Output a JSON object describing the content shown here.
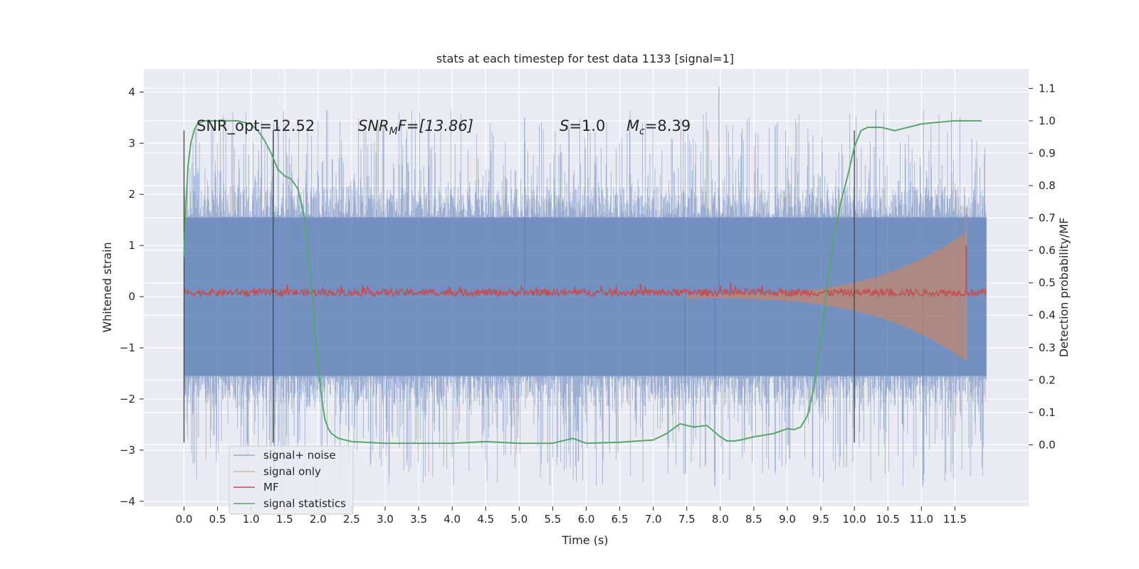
{
  "chart_data": {
    "type": "line",
    "title": "stats at each timestep for test data 1133 [signal=1]",
    "xlabel": "Time (s)",
    "ylabel": "Whitened strain",
    "y2label": "Detection probability/MF",
    "xlim": [
      -0.6,
      12.6
    ],
    "ylim": [
      -4.1,
      4.45
    ],
    "y2lim": [
      -0.19,
      1.16
    ],
    "xticks": [
      "0.0",
      "0.5",
      "1.0",
      "1.5",
      "2.0",
      "2.5",
      "3.0",
      "3.5",
      "4.0",
      "4.5",
      "5.0",
      "5.5",
      "6.0",
      "6.5",
      "7.0",
      "7.5",
      "8.0",
      "8.5",
      "9.0",
      "9.5",
      "10.0",
      "10.5",
      "11.0",
      "11.5"
    ],
    "yticks": [
      "4",
      "3",
      "2",
      "1",
      "0",
      "−1",
      "−2",
      "−3",
      "−4"
    ],
    "y2ticks": [
      "1.1",
      "1.0",
      "0.9",
      "0.8",
      "0.7",
      "0.6",
      "0.5",
      "0.4",
      "0.3",
      "0.2",
      "0.1",
      "0.0"
    ],
    "grid": true,
    "legend_position": "lower-left",
    "annotations": {
      "snr_opt": "SNR_opt=12.52",
      "snr_mf_sym": "SNR",
      "snr_mf_sub": "M",
      "snr_mf_rest": "F=[13.86]",
      "s_sym": "S",
      "s_rest": "=1.0",
      "mc_sym": "M",
      "mc_sub": "c",
      "mc_rest": "=8.39"
    },
    "vlines": [
      {
        "x": 0.0,
        "ymin": -2.85,
        "ymax": 3.25
      },
      {
        "x": 1.33,
        "ymin": -2.85,
        "ymax": 3.25
      },
      {
        "x": 10.0,
        "ymin": -2.85,
        "ymax": 3.25
      }
    ],
    "series": [
      {
        "name": "signal+ noise",
        "color": "#4c72b0",
        "t_range": [
          0.0,
          11.97
        ],
        "envelope": [
          -1.55,
          1.55
        ],
        "spike_max": 3.65,
        "spike_min": -3.7,
        "peaks": [
          {
            "t": 7.98,
            "v": 4.1
          },
          {
            "t": 10.32,
            "v": 3.65
          },
          {
            "t": 5.08,
            "v": 3.5
          },
          {
            "t": 11.02,
            "v": -3.7
          },
          {
            "t": 7.92,
            "v": -3.7
          },
          {
            "t": 7.48,
            "v": -3.45
          }
        ]
      },
      {
        "name": "signal only",
        "color": "#dd8452",
        "chirp_start": 7.5,
        "chirp_end": 11.67,
        "amp_start": 0.03,
        "amp_end": 1.25
      },
      {
        "name": "MF",
        "color": "#c44e52",
        "t_range": [
          0.0,
          11.97
        ],
        "level": 0.08,
        "jitter": 0.07,
        "peak": {
          "t": 11.67,
          "v": 1.0
        }
      },
      {
        "name": "signal statistics",
        "color": "#55a868",
        "x": [
          0.0,
          0.02,
          0.06,
          0.1,
          0.15,
          0.2,
          0.3,
          0.5,
          0.8,
          1.0,
          1.1,
          1.2,
          1.3,
          1.4,
          1.5,
          1.6,
          1.7,
          1.8,
          1.85,
          1.9,
          1.95,
          2.0,
          2.05,
          2.1,
          2.15,
          2.2,
          2.3,
          2.5,
          3.0,
          3.5,
          4.0,
          4.5,
          5.0,
          5.5,
          5.8,
          6.0,
          6.5,
          7.0,
          7.2,
          7.4,
          7.6,
          7.8,
          8.0,
          8.1,
          8.2,
          8.3,
          8.5,
          8.8,
          9.0,
          9.1,
          9.2,
          9.3,
          9.4,
          9.5,
          9.6,
          9.7,
          9.8,
          9.9,
          10.0,
          10.1,
          10.2,
          10.4,
          10.6,
          10.8,
          11.0,
          11.2,
          11.5,
          11.9
        ],
        "y": [
          0.58,
          0.7,
          0.86,
          0.93,
          0.97,
          0.99,
          1.0,
          1.0,
          1.0,
          0.99,
          0.97,
          0.94,
          0.9,
          0.85,
          0.83,
          0.82,
          0.79,
          0.7,
          0.6,
          0.5,
          0.36,
          0.25,
          0.15,
          0.08,
          0.05,
          0.035,
          0.02,
          0.01,
          0.005,
          0.005,
          0.005,
          0.01,
          0.005,
          0.005,
          0.02,
          0.005,
          0.008,
          0.015,
          0.035,
          0.065,
          0.055,
          0.06,
          0.025,
          0.012,
          0.012,
          0.015,
          0.025,
          0.035,
          0.05,
          0.047,
          0.055,
          0.09,
          0.18,
          0.32,
          0.5,
          0.65,
          0.75,
          0.83,
          0.92,
          0.97,
          0.98,
          0.98,
          0.97,
          0.98,
          0.99,
          0.995,
          1.0,
          1.0
        ]
      }
    ]
  }
}
